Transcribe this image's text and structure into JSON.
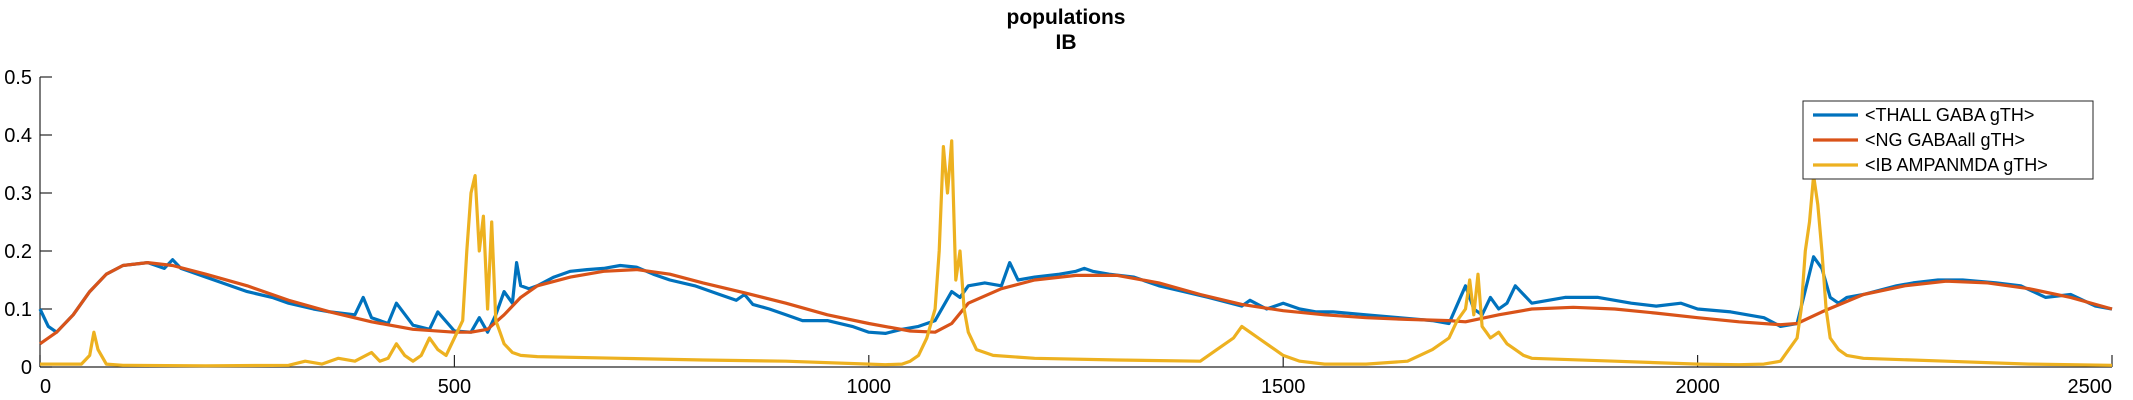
{
  "chart_data": {
    "type": "line",
    "title": "populations",
    "subtitle": "IB",
    "xlabel": "",
    "ylabel": "",
    "xlim": [
      0,
      2500
    ],
    "ylim": [
      0,
      0.5
    ],
    "x_ticks": [
      "0",
      "500",
      "1000",
      "1500",
      "2000",
      "2500"
    ],
    "y_ticks": [
      "0",
      "0.1",
      "0.2",
      "0.3",
      "0.4",
      "0.5"
    ],
    "legend_position": "top-right",
    "grid": false,
    "series": [
      {
        "name": "<THALL GABA gTH>",
        "color": "#0072BD",
        "x": [
          0,
          10,
          20,
          40,
          60,
          80,
          100,
          130,
          150,
          160,
          170,
          180,
          200,
          220,
          250,
          280,
          300,
          330,
          350,
          380,
          390,
          400,
          420,
          430,
          450,
          470,
          480,
          500,
          520,
          530,
          540,
          550,
          560,
          570,
          575,
          580,
          590,
          600,
          620,
          640,
          660,
          680,
          700,
          720,
          740,
          760,
          790,
          820,
          840,
          850,
          860,
          880,
          900,
          920,
          950,
          980,
          1000,
          1020,
          1040,
          1060,
          1080,
          1100,
          1110,
          1120,
          1140,
          1160,
          1170,
          1180,
          1200,
          1230,
          1250,
          1260,
          1270,
          1290,
          1320,
          1350,
          1380,
          1410,
          1450,
          1460,
          1480,
          1500,
          1520,
          1540,
          1560,
          1600,
          1640,
          1680,
          1700,
          1720,
          1730,
          1740,
          1750,
          1760,
          1770,
          1780,
          1800,
          1840,
          1880,
          1920,
          1950,
          1980,
          2000,
          2040,
          2080,
          2100,
          2120,
          2140,
          2150,
          2160,
          2170,
          2180,
          2200,
          2240,
          2260,
          2290,
          2320,
          2360,
          2390,
          2420,
          2450,
          2480,
          2500
        ],
        "y": [
          0.1,
          0.07,
          0.06,
          0.09,
          0.13,
          0.16,
          0.175,
          0.18,
          0.17,
          0.185,
          0.17,
          0.165,
          0.155,
          0.145,
          0.13,
          0.12,
          0.11,
          0.1,
          0.095,
          0.09,
          0.12,
          0.085,
          0.075,
          0.11,
          0.072,
          0.065,
          0.095,
          0.062,
          0.06,
          0.085,
          0.06,
          0.09,
          0.13,
          0.11,
          0.18,
          0.14,
          0.135,
          0.14,
          0.155,
          0.165,
          0.168,
          0.17,
          0.175,
          0.172,
          0.16,
          0.15,
          0.14,
          0.125,
          0.115,
          0.125,
          0.108,
          0.1,
          0.09,
          0.08,
          0.08,
          0.07,
          0.06,
          0.058,
          0.065,
          0.07,
          0.08,
          0.13,
          0.12,
          0.14,
          0.145,
          0.14,
          0.18,
          0.15,
          0.155,
          0.16,
          0.165,
          0.17,
          0.165,
          0.16,
          0.155,
          0.14,
          0.13,
          0.12,
          0.105,
          0.115,
          0.1,
          0.11,
          0.1,
          0.095,
          0.095,
          0.09,
          0.085,
          0.08,
          0.075,
          0.14,
          0.1,
          0.09,
          0.12,
          0.1,
          0.11,
          0.14,
          0.11,
          0.12,
          0.12,
          0.11,
          0.105,
          0.11,
          0.1,
          0.095,
          0.085,
          0.07,
          0.075,
          0.19,
          0.17,
          0.12,
          0.11,
          0.12,
          0.125,
          0.14,
          0.145,
          0.15,
          0.15,
          0.145,
          0.14,
          0.12,
          0.125,
          0.105,
          0.1
        ]
      },
      {
        "name": "<NG GABAall gTH>",
        "color": "#D95319",
        "x": [
          0,
          10,
          20,
          40,
          60,
          80,
          100,
          130,
          160,
          200,
          250,
          300,
          350,
          400,
          450,
          500,
          520,
          540,
          560,
          580,
          600,
          640,
          680,
          720,
          760,
          800,
          850,
          900,
          950,
          1000,
          1050,
          1080,
          1100,
          1120,
          1160,
          1200,
          1250,
          1300,
          1350,
          1400,
          1450,
          1500,
          1550,
          1600,
          1650,
          1700,
          1720,
          1760,
          1800,
          1850,
          1900,
          1950,
          2000,
          2050,
          2100,
          2120,
          2150,
          2200,
          2250,
          2300,
          2350,
          2400,
          2450,
          2500
        ],
        "y": [
          0.04,
          0.05,
          0.06,
          0.09,
          0.13,
          0.16,
          0.175,
          0.18,
          0.175,
          0.16,
          0.14,
          0.115,
          0.095,
          0.078,
          0.065,
          0.06,
          0.06,
          0.065,
          0.09,
          0.12,
          0.14,
          0.155,
          0.165,
          0.168,
          0.16,
          0.145,
          0.128,
          0.11,
          0.09,
          0.075,
          0.062,
          0.06,
          0.075,
          0.11,
          0.135,
          0.15,
          0.158,
          0.158,
          0.145,
          0.125,
          0.108,
          0.097,
          0.09,
          0.085,
          0.082,
          0.08,
          0.078,
          0.09,
          0.1,
          0.103,
          0.1,
          0.093,
          0.085,
          0.078,
          0.073,
          0.075,
          0.095,
          0.125,
          0.14,
          0.148,
          0.145,
          0.135,
          0.12,
          0.1
        ]
      },
      {
        "name": "<IB AMPANMDA gTH>",
        "color": "#EDB120",
        "x": [
          0,
          20,
          50,
          60,
          65,
          70,
          80,
          100,
          200,
          300,
          320,
          340,
          360,
          380,
          400,
          410,
          420,
          430,
          440,
          450,
          460,
          470,
          480,
          490,
          500,
          510,
          515,
          520,
          525,
          530,
          535,
          540,
          545,
          550,
          555,
          560,
          570,
          580,
          600,
          700,
          800,
          900,
          1000,
          1020,
          1040,
          1050,
          1060,
          1070,
          1080,
          1085,
          1090,
          1095,
          1100,
          1105,
          1110,
          1115,
          1120,
          1130,
          1150,
          1200,
          1300,
          1400,
          1420,
          1440,
          1450,
          1460,
          1470,
          1480,
          1490,
          1500,
          1520,
          1550,
          1600,
          1650,
          1680,
          1700,
          1710,
          1720,
          1725,
          1730,
          1735,
          1740,
          1745,
          1750,
          1760,
          1770,
          1780,
          1790,
          1800,
          1900,
          2000,
          2050,
          2080,
          2100,
          2110,
          2120,
          2125,
          2130,
          2135,
          2140,
          2145,
          2150,
          2155,
          2160,
          2170,
          2180,
          2200,
          2300,
          2400,
          2500
        ],
        "y": [
          0.005,
          0.005,
          0.005,
          0.02,
          0.06,
          0.03,
          0.005,
          0.003,
          0.002,
          0.003,
          0.01,
          0.005,
          0.015,
          0.01,
          0.025,
          0.01,
          0.015,
          0.04,
          0.02,
          0.01,
          0.02,
          0.05,
          0.03,
          0.02,
          0.05,
          0.08,
          0.2,
          0.3,
          0.33,
          0.2,
          0.26,
          0.1,
          0.25,
          0.08,
          0.06,
          0.04,
          0.025,
          0.02,
          0.018,
          0.015,
          0.012,
          0.01,
          0.005,
          0.004,
          0.005,
          0.01,
          0.02,
          0.05,
          0.1,
          0.2,
          0.38,
          0.3,
          0.39,
          0.15,
          0.2,
          0.1,
          0.06,
          0.03,
          0.02,
          0.015,
          0.012,
          0.01,
          0.03,
          0.05,
          0.07,
          0.06,
          0.05,
          0.04,
          0.03,
          0.02,
          0.01,
          0.005,
          0.005,
          0.01,
          0.03,
          0.05,
          0.08,
          0.1,
          0.15,
          0.09,
          0.16,
          0.07,
          0.06,
          0.05,
          0.06,
          0.04,
          0.03,
          0.02,
          0.015,
          0.01,
          0.005,
          0.004,
          0.005,
          0.01,
          0.03,
          0.05,
          0.1,
          0.2,
          0.25,
          0.33,
          0.28,
          0.2,
          0.1,
          0.05,
          0.03,
          0.02,
          0.015,
          0.01,
          0.005,
          0.003
        ]
      }
    ]
  }
}
